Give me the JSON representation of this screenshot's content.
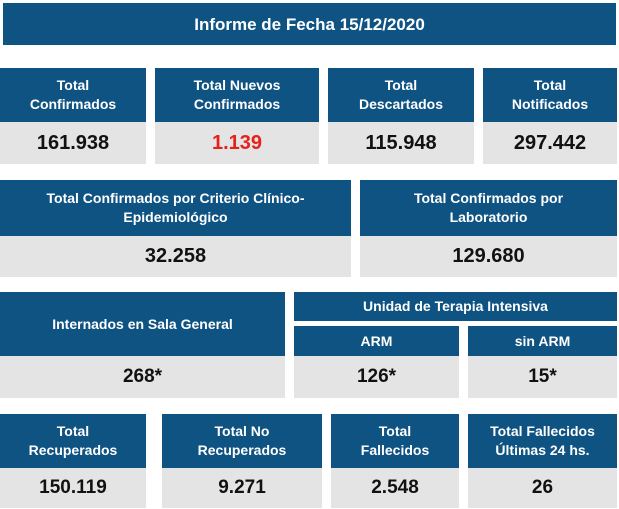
{
  "title": "Informe de Fecha 15/12/2020",
  "row1": [
    {
      "label_1": "Total",
      "label_2": "Confirmados",
      "value": "161.938"
    },
    {
      "label_1": "Total Nuevos",
      "label_2": "Confirmados",
      "value": "1.139"
    },
    {
      "label_1": "Total",
      "label_2": "Descartados",
      "value": "115.948"
    },
    {
      "label_1": "Total",
      "label_2": "Notificados",
      "value": "297.442"
    }
  ],
  "row2": [
    {
      "label_1": "Total Confirmados por Criterio Clínico-",
      "label_2": "Epidemiológico",
      "value": "32.258"
    },
    {
      "label_1": "Total Confirmados por",
      "label_2": "Laboratorio",
      "value": "129.680"
    }
  ],
  "row3": {
    "general": {
      "label": "Internados en Sala General",
      "value": "268*"
    },
    "uti": {
      "label": "Unidad de Terapia Intensiva"
    },
    "arm": {
      "label": "ARM",
      "value": "126*"
    },
    "sin_arm": {
      "label": "sin ARM",
      "value": "15*"
    }
  },
  "row4": [
    {
      "label_1": "Total",
      "label_2": "Recuperados",
      "value": "150.119"
    },
    {
      "label_1": "Total No",
      "label_2": "Recuperados",
      "value": "9.271"
    },
    {
      "label_1": "Total",
      "label_2": "Fallecidos",
      "value": "2.548"
    },
    {
      "label_1": "Total Fallecidos",
      "label_2": "Últimas 24 hs.",
      "value": "26"
    }
  ],
  "colors": {
    "header_bg": "#0f5383",
    "value_bg": "#e4e4e4",
    "highlight": "#e3221b"
  }
}
